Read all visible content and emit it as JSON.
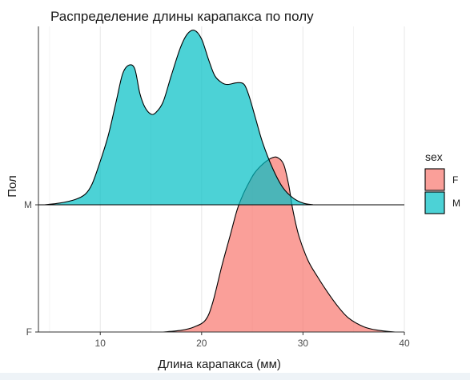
{
  "colors": {
    "F": "#F8766D",
    "M": "#00BFC4",
    "grid": "#ebebeb",
    "axis": "#333333"
  },
  "chart_data": {
    "type": "area",
    "title": "Распределение длины карапакса по полу",
    "xlabel": "Длина карапакса (мм)",
    "ylabel": "Пол",
    "xlim": [
      3.9,
      40
    ],
    "x_ticks": [
      10,
      20,
      30,
      40
    ],
    "y_categories": [
      "F",
      "M"
    ],
    "grid": "vertical only",
    "legend": {
      "title": "sex",
      "placement": "right",
      "entries": [
        "F",
        "M"
      ]
    },
    "series": [
      {
        "name": "F",
        "baseline": "F",
        "points": [
          [
            16.2,
            0.0
          ],
          [
            18.0,
            0.01
          ],
          [
            19.3,
            0.03
          ],
          [
            20.4,
            0.07
          ],
          [
            21.1,
            0.17
          ],
          [
            22.0,
            0.38
          ],
          [
            22.8,
            0.55
          ],
          [
            23.5,
            0.7
          ],
          [
            24.1,
            0.79
          ],
          [
            24.7,
            0.86
          ],
          [
            25.2,
            0.91
          ],
          [
            25.8,
            0.95
          ],
          [
            26.4,
            0.98
          ],
          [
            27.0,
            1.0
          ],
          [
            27.5,
            1.0
          ],
          [
            28.1,
            0.96
          ],
          [
            28.6,
            0.84
          ],
          [
            29.0,
            0.7
          ],
          [
            29.6,
            0.55
          ],
          [
            30.5,
            0.41
          ],
          [
            31.4,
            0.32
          ],
          [
            32.4,
            0.23
          ],
          [
            33.4,
            0.15
          ],
          [
            34.5,
            0.08
          ],
          [
            36.0,
            0.03
          ],
          [
            37.4,
            0.01
          ],
          [
            39.1,
            0.0
          ]
        ]
      },
      {
        "name": "M",
        "baseline": "M",
        "points": [
          [
            4.5,
            0.0
          ],
          [
            6.0,
            0.01
          ],
          [
            7.5,
            0.03
          ],
          [
            8.5,
            0.06
          ],
          [
            9.2,
            0.12
          ],
          [
            10.0,
            0.25
          ],
          [
            10.8,
            0.4
          ],
          [
            11.6,
            0.6
          ],
          [
            12.2,
            0.75
          ],
          [
            12.8,
            0.8
          ],
          [
            13.4,
            0.78
          ],
          [
            13.9,
            0.64
          ],
          [
            14.4,
            0.56
          ],
          [
            15.0,
            0.52
          ],
          [
            15.5,
            0.53
          ],
          [
            16.2,
            0.59
          ],
          [
            17.0,
            0.74
          ],
          [
            17.9,
            0.9
          ],
          [
            18.6,
            0.98
          ],
          [
            19.3,
            1.0
          ],
          [
            20.0,
            0.95
          ],
          [
            20.7,
            0.83
          ],
          [
            21.3,
            0.74
          ],
          [
            22.0,
            0.7
          ],
          [
            22.6,
            0.69
          ],
          [
            23.5,
            0.7
          ],
          [
            24.2,
            0.69
          ],
          [
            24.7,
            0.62
          ],
          [
            25.3,
            0.5
          ],
          [
            26.0,
            0.36
          ],
          [
            27.0,
            0.21
          ],
          [
            28.0,
            0.1
          ],
          [
            29.0,
            0.04
          ],
          [
            30.0,
            0.01
          ],
          [
            31.0,
            0.0
          ]
        ]
      }
    ]
  }
}
